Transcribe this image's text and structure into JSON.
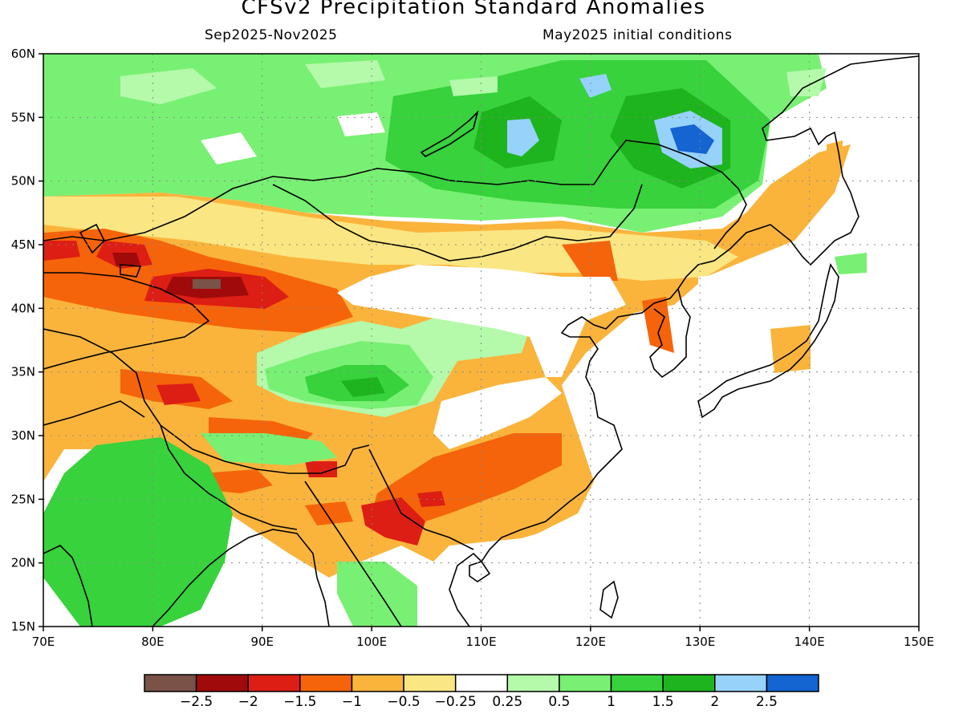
{
  "title": "CFSv2 Precipitation Standard Anomalies",
  "subtitle_left": "Sep2025-Nov2025",
  "subtitle_right": "May2025 initial conditions",
  "map": {
    "lon_ticks": [
      "70E",
      "80E",
      "90E",
      "100E",
      "110E",
      "120E",
      "130E",
      "140E",
      "150E"
    ],
    "lat_ticks": [
      "15N",
      "20N",
      "25N",
      "30N",
      "35N",
      "40N",
      "45N",
      "50N",
      "55N",
      "60N"
    ],
    "lon_range": [
      70,
      150
    ],
    "lat_range": [
      15,
      60
    ],
    "grid": "dotted"
  },
  "colorbar": {
    "colors": [
      "#7a5248",
      "#a00a0a",
      "#dc1e14",
      "#f5640a",
      "#fab43c",
      "#fae682",
      "#ffffff",
      "#b4faaa",
      "#78f073",
      "#37d23c",
      "#1eb41e",
      "#96d2fa",
      "#1464d2"
    ],
    "labels": [
      "-2.5",
      "-2",
      "-1.5",
      "-1",
      "-0.5",
      "-0.25",
      "0.25",
      "0.5",
      "1",
      "1.5",
      "2",
      "2.5"
    ]
  },
  "fields": {
    "wet_north": "#78f073",
    "wet_north_core": "#37d23c",
    "wet_north_max": "#1eb41e",
    "wet_peak_light": "#96d2fa",
    "wet_peak_dark": "#1464d2",
    "dry_band": "#fab43c",
    "dry_band_core": "#f5640a",
    "dry_band_max": "#dc1e14",
    "dry_extreme": "#a00a0a",
    "dry_peak": "#7a5248",
    "wet_india": "#37d23c",
    "wet_tibet": "#78f073"
  }
}
